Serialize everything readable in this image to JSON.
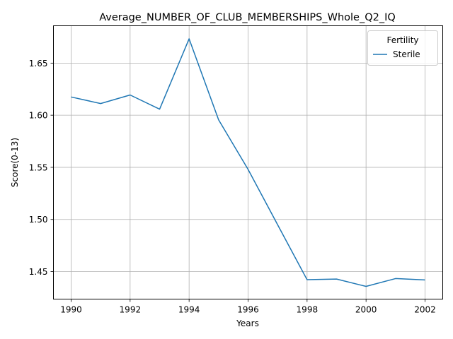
{
  "chart_data": {
    "type": "line",
    "title": "Average_NUMBER_OF_CLUB_MEMBERSHIPS_Whole_Q2_IQ",
    "xlabel": "Years",
    "ylabel": "Score(0-13)",
    "xlim": [
      1989.4,
      2002.6
    ],
    "ylim": [
      1.4236,
      1.6858
    ],
    "grid": true,
    "x_ticks": [
      1990,
      1992,
      1994,
      1996,
      1998,
      2000,
      2002
    ],
    "y_ticks": [
      1.45,
      1.5,
      1.55,
      1.6,
      1.65
    ],
    "y_tick_labels": [
      "1.45",
      "1.50",
      "1.55",
      "1.60",
      "1.65"
    ],
    "legend": {
      "title": "Fertility",
      "position": "top-right"
    },
    "series": [
      {
        "name": "Sterile",
        "color": "#1f77b4",
        "x": [
          1990,
          1991,
          1992,
          1993,
          1994,
          1995,
          1996,
          1997,
          1998,
          1999,
          2000,
          2001,
          2002
        ],
        "y": [
          1.6175,
          1.6112,
          1.6194,
          1.6058,
          1.6733,
          1.5956,
          1.548,
          1.495,
          1.4422,
          1.4428,
          1.4358,
          1.4433,
          1.442
        ]
      }
    ]
  }
}
